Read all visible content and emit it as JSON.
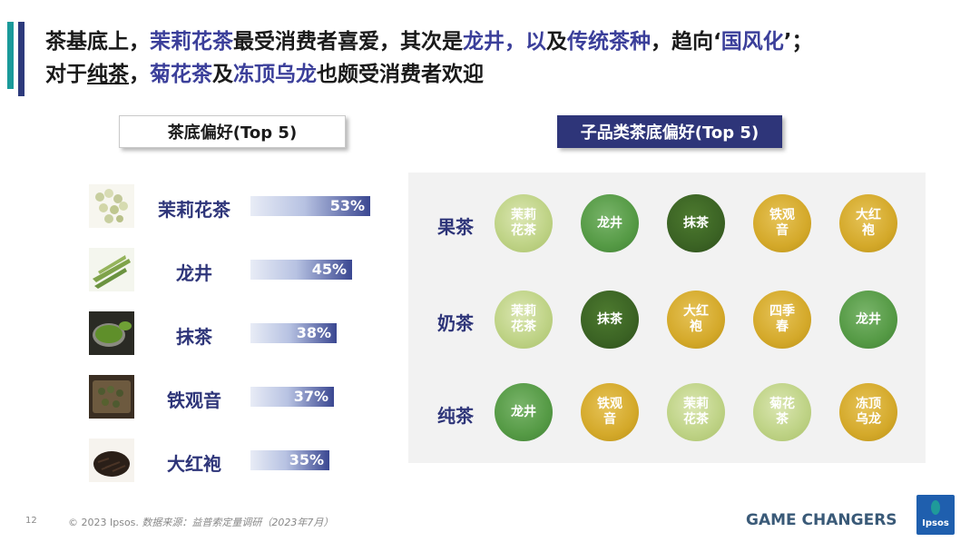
{
  "headline": {
    "line1": [
      {
        "text": "茶基底上，",
        "style": "plain"
      },
      {
        "text": "茉莉花茶",
        "style": "hl"
      },
      {
        "text": "最受消费者喜爱，其次是",
        "style": "plain"
      },
      {
        "text": "龙井，以",
        "style": "hl"
      },
      {
        "text": "及",
        "style": "plain"
      },
      {
        "text": "传统茶种",
        "style": "hl"
      },
      {
        "text": "，趋向‘",
        "style": "plain"
      },
      {
        "text": "国风化",
        "style": "hl"
      },
      {
        "text": "’；",
        "style": "plain"
      }
    ],
    "line2": [
      {
        "text": "对于",
        "style": "plain"
      },
      {
        "text": "纯茶",
        "style": "ul"
      },
      {
        "text": "，",
        "style": "plain"
      },
      {
        "text": "菊花茶",
        "style": "hl"
      },
      {
        "text": "及",
        "style": "plain"
      },
      {
        "text": "冻顶乌龙",
        "style": "hl"
      },
      {
        "text": "也颇受消费者欢迎",
        "style": "plain"
      }
    ]
  },
  "left_panel": {
    "title": "茶底偏好(Top 5)"
  },
  "right_panel": {
    "title": "子品类茶底偏好(Top 5)"
  },
  "chart_data": [
    {
      "type": "bar",
      "title": "茶底偏好(Top 5)",
      "orientation": "horizontal",
      "categories": [
        "茉莉花茶",
        "龙井",
        "抹茶",
        "铁观音",
        "大红袍"
      ],
      "values": [
        53,
        45,
        38,
        37,
        35
      ],
      "value_labels": [
        "53%",
        "45%",
        "38%",
        "37%",
        "35%"
      ],
      "unit": "%",
      "xlim": [
        0,
        53
      ]
    },
    {
      "type": "table",
      "title": "子品类茶底偏好(Top 5)",
      "rows": [
        {
          "label": "果茶",
          "items": [
            {
              "name": "茉莉花茶",
              "lines": [
                "茉莉",
                "花茶"
              ],
              "tone": "light"
            },
            {
              "name": "龙井",
              "lines": [
                "龙井"
              ],
              "tone": "mid"
            },
            {
              "name": "抹茶",
              "lines": [
                "抹茶"
              ],
              "tone": "dark"
            },
            {
              "name": "铁观音",
              "lines": [
                "铁观",
                "音"
              ],
              "tone": "gold"
            },
            {
              "name": "大红袍",
              "lines": [
                "大红",
                "袍"
              ],
              "tone": "gold"
            }
          ]
        },
        {
          "label": "奶茶",
          "items": [
            {
              "name": "茉莉花茶",
              "lines": [
                "茉莉",
                "花茶"
              ],
              "tone": "light"
            },
            {
              "name": "抹茶",
              "lines": [
                "抹茶"
              ],
              "tone": "dark"
            },
            {
              "name": "大红袍",
              "lines": [
                "大红",
                "袍"
              ],
              "tone": "gold"
            },
            {
              "name": "四季春",
              "lines": [
                "四季",
                "春"
              ],
              "tone": "gold"
            },
            {
              "name": "龙井",
              "lines": [
                "龙井"
              ],
              "tone": "mid"
            }
          ]
        },
        {
          "label": "纯茶",
          "items": [
            {
              "name": "龙井",
              "lines": [
                "龙井"
              ],
              "tone": "mid"
            },
            {
              "name": "铁观音",
              "lines": [
                "铁观",
                "音"
              ],
              "tone": "gold"
            },
            {
              "name": "茉莉花茶",
              "lines": [
                "茉莉",
                "花茶"
              ],
              "tone": "light"
            },
            {
              "name": "菊花茶",
              "lines": [
                "菊花",
                "茶"
              ],
              "tone": "light"
            },
            {
              "name": "冻顶乌龙",
              "lines": [
                "冻顶",
                "乌龙"
              ],
              "tone": "gold"
            }
          ]
        }
      ]
    }
  ],
  "footer": {
    "page_number": "12",
    "copyright": "© 2023 Ipsos.",
    "source": "数据来源：益普索定量调研（2023年7月）",
    "tagline": "GAME CHANGERS",
    "logo_text": "Ipsos"
  },
  "colors": {
    "navy": "#2e3579",
    "highlight": "#3b3f9a",
    "teal": "#1a9a9a",
    "circle_light": "#c0d488",
    "circle_mid": "#559a45",
    "circle_dark": "#3b6324",
    "circle_gold": "#d4a92a"
  },
  "thumbnails": [
    "jasmine-tea-icon",
    "longjing-tea-icon",
    "matcha-icon",
    "tieguanyin-tea-icon",
    "dahongpao-tea-icon"
  ]
}
